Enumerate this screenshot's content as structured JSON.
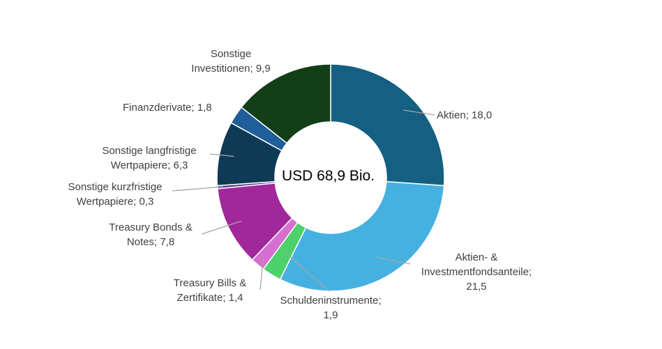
{
  "chart_data": {
    "type": "pie",
    "style": "donut",
    "center_label": "USD 68,9 Bio.",
    "slices": [
      {
        "name": "Aktien",
        "value": 18.0,
        "color": "#156082",
        "label_lines": [
          "Aktien; 18,0"
        ]
      },
      {
        "name": "Aktien- & Investmentfondsanteile",
        "value": 21.5,
        "color": "#46b1e1",
        "label_lines": [
          "Aktien- &",
          "Investmentfondsanteile;",
          "21,5"
        ]
      },
      {
        "name": "Schuldeninstrumente",
        "value": 1.9,
        "color": "#4ed06a",
        "label_lines": [
          "Schuldeninstrumente;",
          "1,9"
        ]
      },
      {
        "name": "Treasury Bills & Zertifikate",
        "value": 1.4,
        "color": "#d76fd1",
        "label_lines": [
          "Treasury Bills &",
          "Zertifikate; 1,4"
        ]
      },
      {
        "name": "Treasury Bonds & Notes",
        "value": 7.8,
        "color": "#a0289a",
        "label_lines": [
          "Treasury Bonds &",
          "Notes; 7,8"
        ]
      },
      {
        "name": "Sonstige kurzfristige Wertpapiere",
        "value": 0.3,
        "color": "#5c3d8f",
        "label_lines": [
          "Sonstige kurzfristige",
          "Wertpapiere; 0,3"
        ]
      },
      {
        "name": "Sonstige langfristige Wertpapiere",
        "value": 6.3,
        "color": "#0e3a55",
        "label_lines": [
          "Sonstige langfristige",
          "Wertpapiere; 6,3"
        ]
      },
      {
        "name": "Finanzderivate",
        "value": 1.8,
        "color": "#1f5e99",
        "label_lines": [
          "Finanzderivate; 1,8"
        ]
      },
      {
        "name": "Sonstige Investitionen",
        "value": 9.9,
        "color": "#123f16",
        "label_lines": [
          "Sonstige",
          "Investitionen; 9,9"
        ]
      }
    ]
  }
}
